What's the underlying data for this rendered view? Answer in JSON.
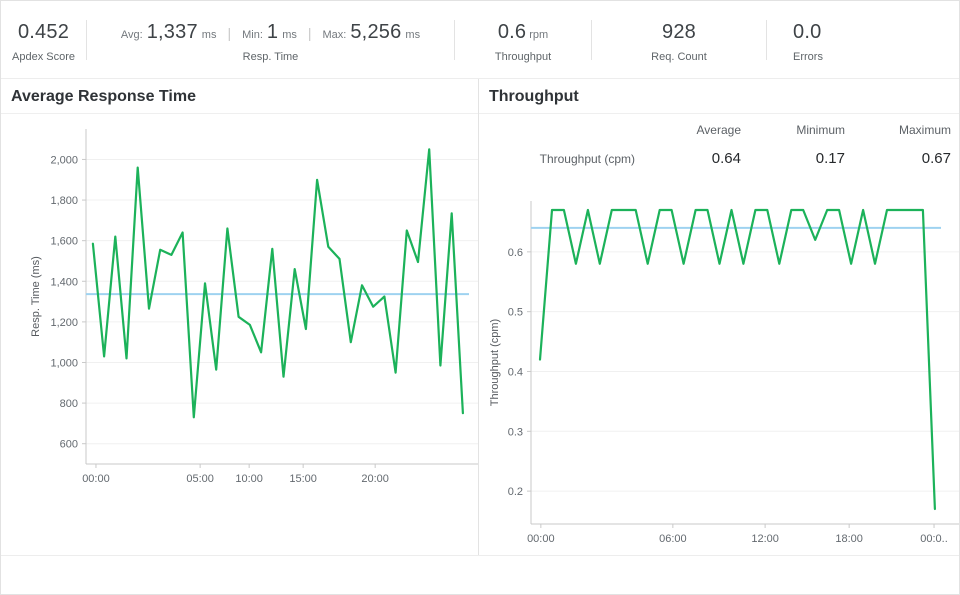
{
  "topbar": {
    "apdex": {
      "value": "0.452",
      "label": "Apdex Score"
    },
    "resp_time": {
      "avg_label": "Avg:",
      "avg": "1,337",
      "avg_unit": "ms",
      "min_label": "Min:",
      "min": "1",
      "min_unit": "ms",
      "max_label": "Max:",
      "max": "5,256",
      "max_unit": "ms",
      "separator": "|",
      "label": "Resp. Time"
    },
    "throughput": {
      "value": "0.6",
      "unit": "rpm",
      "label": "Throughput"
    },
    "req_count": {
      "value": "928",
      "label": "Req. Count"
    },
    "errors": {
      "value": "0.0",
      "label": "Errors"
    }
  },
  "left_panel": {
    "title": "Average Response Time"
  },
  "right_panel": {
    "title": "Throughput",
    "table": {
      "headers": [
        "Average",
        "Minimum",
        "Maximum"
      ],
      "rows": [
        {
          "label": "Throughput (cpm)",
          "values": [
            "0.64",
            "0.17",
            "0.67"
          ]
        }
      ]
    }
  },
  "colors": {
    "line": "#1cb25a",
    "average_line": "#9ed2f0",
    "grid": "#f0f0f0",
    "axis": "#c9c9c9"
  },
  "chart_data": [
    {
      "type": "line",
      "title": "Average Response Time",
      "xlabel": "",
      "ylabel": "Resp. Time (ms)",
      "grid": true,
      "legend_position": "none",
      "average": 1337,
      "ylim": [
        500,
        2150
      ],
      "yticks": [
        {
          "v": 600,
          "label": "600"
        },
        {
          "v": 800,
          "label": "800"
        },
        {
          "v": 1000,
          "label": "1,000"
        },
        {
          "v": 1200,
          "label": "1,200"
        },
        {
          "v": 1400,
          "label": "1,400"
        },
        {
          "v": 1600,
          "label": "1,600"
        },
        {
          "v": 1800,
          "label": "1,800"
        },
        {
          "v": 2000,
          "label": "2,000"
        }
      ],
      "xticks": [
        {
          "label": "00:00",
          "pos": 0.026
        },
        {
          "label": "05:00",
          "pos": 0.298
        },
        {
          "label": "10:00",
          "pos": 0.426
        },
        {
          "label": "15:00",
          "pos": 0.567
        },
        {
          "label": "20:00",
          "pos": 0.755
        }
      ],
      "series": [
        {
          "name": "Resp. Time (ms)",
          "values": [
            1585,
            1030,
            1620,
            1020,
            1960,
            1265,
            1555,
            1530,
            1640,
            730,
            1390,
            965,
            1660,
            1225,
            1185,
            1050,
            1560,
            930,
            1460,
            1165,
            1900,
            1570,
            1510,
            1100,
            1380,
            1275,
            1325,
            950,
            1650,
            1495,
            2050,
            985,
            1735,
            750
          ]
        }
      ]
    },
    {
      "type": "line",
      "title": "Throughput",
      "xlabel": "",
      "ylabel": "Throughput (cpm)",
      "grid": true,
      "legend_position": "none",
      "average": 0.64,
      "ylim": [
        0.145,
        0.685
      ],
      "yticks": [
        {
          "v": 0.2,
          "label": "0.2"
        },
        {
          "v": 0.3,
          "label": "0.3"
        },
        {
          "v": 0.4,
          "label": "0.4"
        },
        {
          "v": 0.5,
          "label": "0.5"
        },
        {
          "v": 0.6,
          "label": "0.6"
        }
      ],
      "xticks": [
        {
          "label": "00:00",
          "pos": 0.024
        },
        {
          "label": "06:00",
          "pos": 0.346
        },
        {
          "label": "12:00",
          "pos": 0.571
        },
        {
          "label": "18:00",
          "pos": 0.776
        },
        {
          "label": "00:0..",
          "pos": 0.983
        }
      ],
      "series": [
        {
          "name": "Throughput (cpm)",
          "values": [
            0.42,
            0.67,
            0.67,
            0.58,
            0.67,
            0.58,
            0.67,
            0.67,
            0.67,
            0.58,
            0.67,
            0.67,
            0.58,
            0.67,
            0.67,
            0.58,
            0.67,
            0.58,
            0.67,
            0.67,
            0.58,
            0.67,
            0.67,
            0.62,
            0.67,
            0.67,
            0.58,
            0.67,
            0.58,
            0.67,
            0.67,
            0.67,
            0.67,
            0.17
          ]
        }
      ]
    }
  ]
}
